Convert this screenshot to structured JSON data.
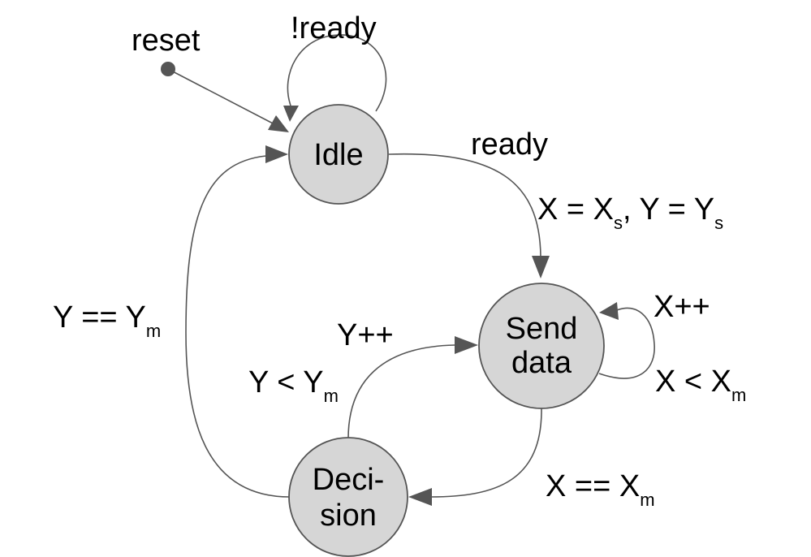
{
  "diagram": {
    "type": "state-machine",
    "start": {
      "label": "reset"
    },
    "states": [
      {
        "id": "idle",
        "lines": [
          "Idle"
        ]
      },
      {
        "id": "send",
        "lines": [
          "Send",
          "data"
        ]
      },
      {
        "id": "decision",
        "lines": [
          "Deci-",
          "sion"
        ]
      }
    ],
    "transitions": [
      {
        "id": "reset-to-idle",
        "from": "reset",
        "to": "idle",
        "label": ""
      },
      {
        "id": "idle-self",
        "from": "idle",
        "to": "idle",
        "label": "!ready"
      },
      {
        "id": "idle-to-send",
        "from": "idle",
        "to": "send",
        "label": {
          "condition": "ready",
          "action_x": "X = X",
          "action_x_sub": "s",
          "action_sep": ", Y = Y",
          "action_y_sub": "s"
        }
      },
      {
        "id": "send-self",
        "from": "send",
        "to": "send",
        "label": {
          "action": "X++",
          "cond_main": "X < X",
          "cond_sub": "m"
        }
      },
      {
        "id": "send-to-decision",
        "from": "send",
        "to": "decision",
        "label": {
          "main": "X == X",
          "sub": "m"
        }
      },
      {
        "id": "decision-to-send",
        "from": "decision",
        "to": "send",
        "label": {
          "action": "Y++",
          "cond_main": "Y < Y",
          "cond_sub": "m"
        }
      },
      {
        "id": "decision-to-idle",
        "from": "decision",
        "to": "idle",
        "label": {
          "main": "Y == Y",
          "sub": "m"
        }
      }
    ]
  }
}
